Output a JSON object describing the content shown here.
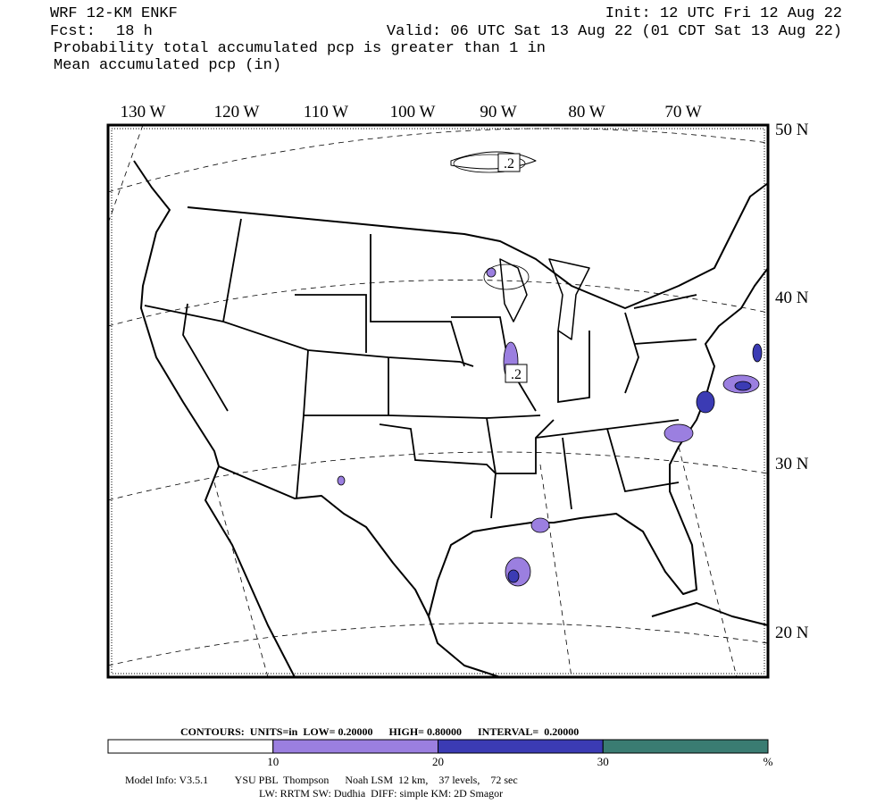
{
  "header": {
    "model": "WRF 12-KM ENKF",
    "init": "Init: 12 UTC Fri 12 Aug 22",
    "fcst_label": "Fcst:",
    "fcst_value": "18 h",
    "valid": "Valid: 06 UTC Sat 13 Aug 22 (01 CDT Sat 13 Aug 22)",
    "line1": "Probability total accumulated pcp is greater than 1 in",
    "line2": "Mean accumulated pcp (in)"
  },
  "map": {
    "lon_labels": [
      "130 W",
      "120 W",
      "110 W",
      "100 W",
      "90 W",
      "80 W",
      "70 W"
    ],
    "lat_labels": [
      "50 N",
      "40 N",
      "30 N",
      "20 N"
    ],
    "contour_labels": [
      ".2",
      ".2"
    ]
  },
  "contours": {
    "text": "CONTOURS:  UNITS=in  LOW= 0.20000      HIGH= 0.80000      INTERVAL=  0.20000"
  },
  "colorbar": {
    "colors": [
      "#ffffff",
      "#9b7fe0",
      "#3b3bb4",
      "#3a7c72"
    ],
    "labels": [
      "10",
      "20",
      "30",
      "%"
    ]
  },
  "footer": {
    "line1": "Model Info: V3.5.1          YSU PBL  Thompson      Noah LSM  12 km,    37 levels,    72 sec",
    "line2": "LW: RRTM SW: Dudhia  DIFF: simple KM: 2D Smagor"
  }
}
